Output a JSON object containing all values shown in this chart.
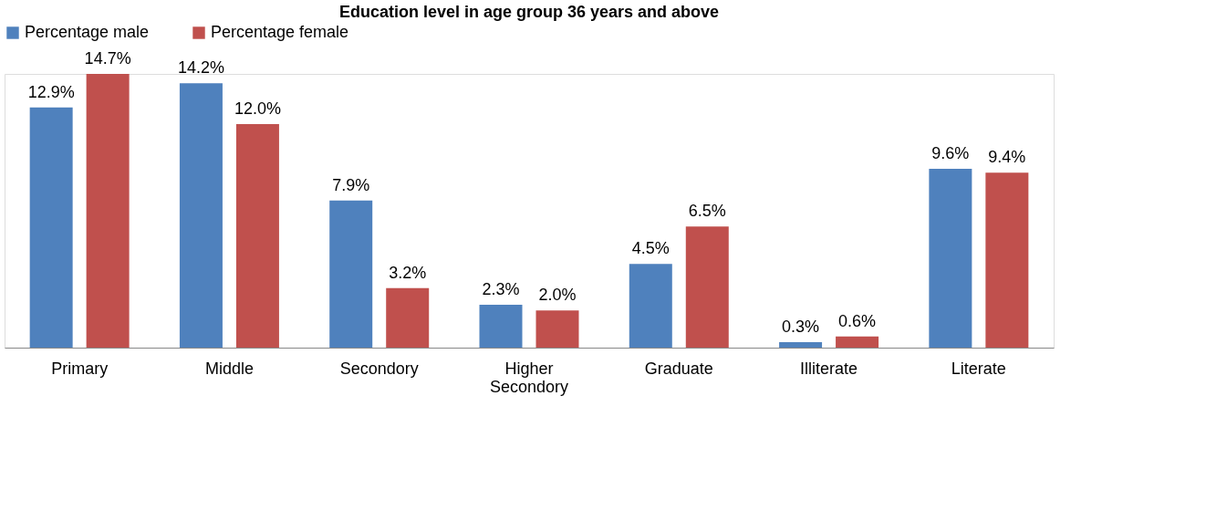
{
  "chart_data": {
    "type": "bar",
    "title": "Education level in age group 36 years and above",
    "categories": [
      "Primary",
      "Middle",
      "Secondory",
      "Higher Secondory",
      "Graduate",
      "Illiterate",
      "Literate"
    ],
    "series": [
      {
        "name": "Percentage  male",
        "color": "#4f81bd",
        "values": [
          12.9,
          14.2,
          7.9,
          2.3,
          4.5,
          0.3,
          9.6
        ],
        "value_labels": [
          "12.9%",
          "14.2%",
          "7.9%",
          "2.3%",
          "4.5%",
          "0.3%",
          "9.6%"
        ]
      },
      {
        "name": "Percentage female",
        "color": "#c0504d",
        "values": [
          14.7,
          12.0,
          3.2,
          2.0,
          6.5,
          0.6,
          9.4
        ],
        "value_labels": [
          "14.7%",
          "12.0%",
          "3.2%",
          "2.0%",
          "6.5%",
          "0.6%",
          "9.4%"
        ]
      }
    ],
    "legend": "top",
    "grid": false
  }
}
